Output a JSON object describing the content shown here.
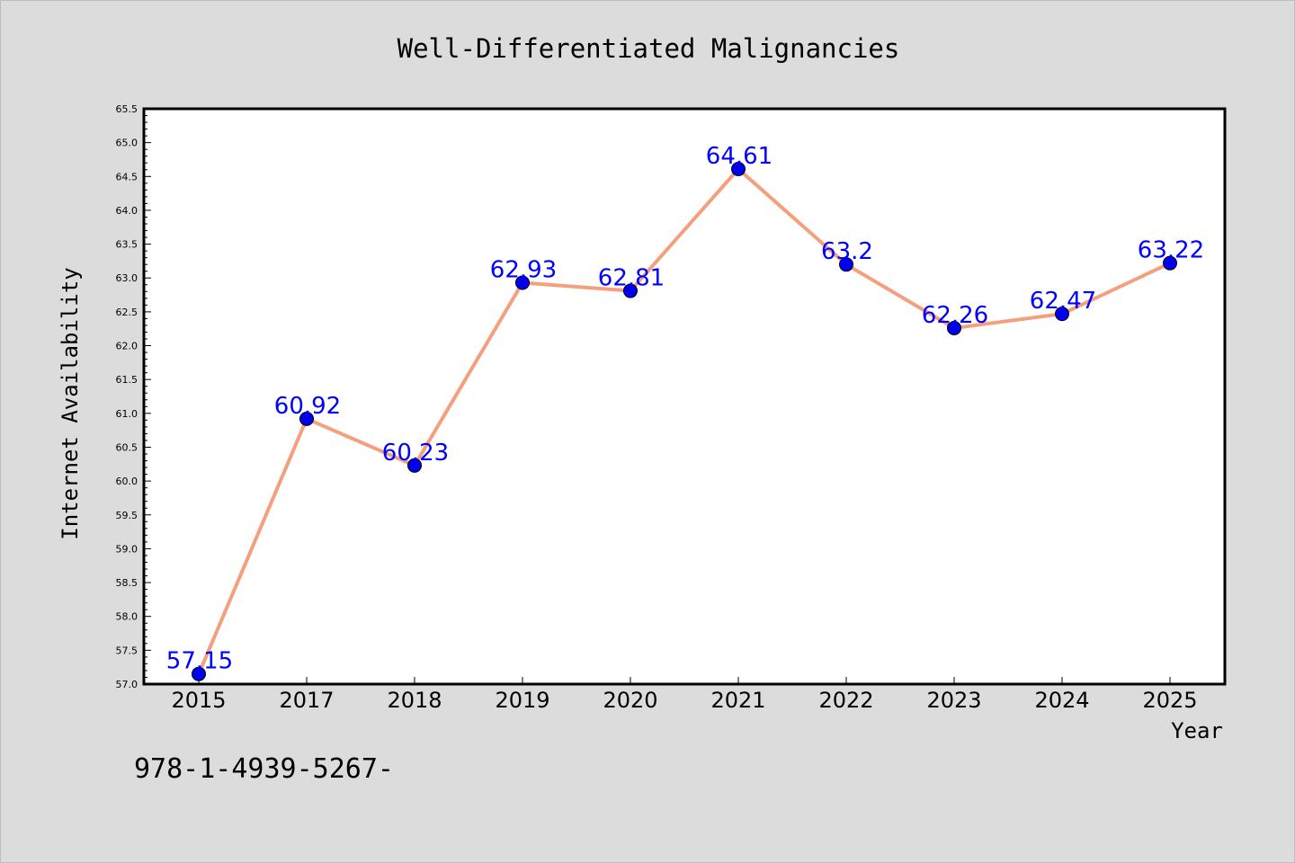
{
  "colors": {
    "figure_background": "#dcdcdc",
    "plot_background": "#ffffff",
    "line": "#f4a07e",
    "marker": "#0000ee",
    "data_label": "#0000ff"
  },
  "footer_text": "978-1-4939-5267-",
  "chart_data": {
    "type": "line",
    "title": "Well-Differentiated Malignancies",
    "xlabel": "Year",
    "ylabel": "Internet Availability",
    "categories": [
      "2015",
      "2017",
      "2018",
      "2019",
      "2020",
      "2021",
      "2022",
      "2023",
      "2024",
      "2025"
    ],
    "series": [
      {
        "values": [
          57.15,
          60.92,
          60.23,
          62.93,
          62.81,
          64.61,
          63.2,
          62.26,
          62.47,
          63.22
        ],
        "labels": [
          "57.15",
          "60.92",
          "60.23",
          "62.93",
          "62.81",
          "64.61",
          "63.2",
          "62.26",
          "62.47",
          "63.22"
        ]
      }
    ],
    "ylim": [
      57.0,
      65.5
    ],
    "yticks": [
      "57.0",
      "57.5",
      "58.0",
      "58.5",
      "59.0",
      "59.5",
      "60.0",
      "60.5",
      "61.0",
      "61.5",
      "62.0",
      "62.5",
      "63.0",
      "63.5",
      "64.0",
      "64.5",
      "65.0",
      "65.5"
    ],
    "grid": false,
    "legend": "none"
  }
}
